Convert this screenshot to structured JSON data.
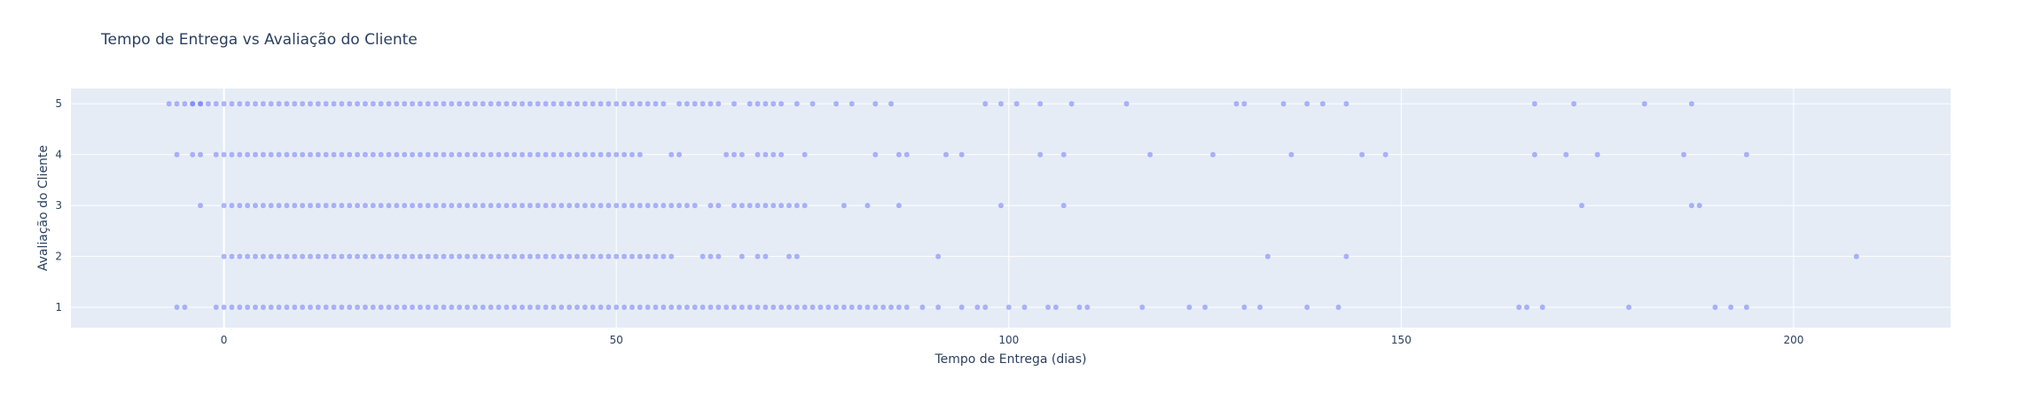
{
  "chart_data": {
    "type": "scatter",
    "title": "Tempo de Entrega vs Avaliação do Cliente",
    "xlabel": "Tempo de Entrega (dias)",
    "ylabel": "Avaliação do Cliente",
    "xlim": [
      -19.5,
      220
    ],
    "ylim": [
      0.6,
      5.3
    ],
    "xticks": [
      0,
      50,
      100,
      150,
      200
    ],
    "yticks": [
      1,
      2,
      3,
      4,
      5
    ],
    "grid": true,
    "legend": "none",
    "colors": {
      "marker": "#636efa",
      "plot_bg": "#e5ecf6",
      "grid": "#ffffff",
      "text": "#2a3f5f",
      "paper_bg": "#ffffff"
    },
    "marker_opacity": 0.5,
    "series": [
      {
        "rating": 5,
        "x_dense": [
          -5,
          55
        ],
        "x_sparse": [
          -7,
          -6,
          -4,
          -3,
          56,
          58,
          59,
          60,
          61,
          62,
          63,
          65,
          67,
          68,
          69,
          70,
          71,
          73,
          75,
          78,
          80,
          83,
          85,
          97,
          99,
          101,
          104,
          108,
          115,
          129,
          130,
          135,
          138,
          140,
          143,
          167,
          172,
          181,
          187
        ]
      },
      {
        "rating": 4,
        "x_dense": [
          -1,
          50
        ],
        "x_sparse": [
          -6,
          -4,
          -3,
          51,
          52,
          53,
          57,
          58,
          64,
          65,
          66,
          68,
          69,
          70,
          71,
          74,
          83,
          86,
          87,
          92,
          94,
          104,
          107,
          118,
          126,
          136,
          145,
          148,
          167,
          171,
          175,
          186,
          194
        ]
      },
      {
        "rating": 3,
        "x_dense": [
          0,
          55
        ],
        "x_sparse": [
          -3,
          56,
          57,
          58,
          59,
          60,
          62,
          63,
          65,
          66,
          67,
          68,
          69,
          70,
          71,
          72,
          73,
          74,
          79,
          82,
          86,
          99,
          107,
          173,
          187,
          188
        ]
      },
      {
        "rating": 2,
        "x_dense": [
          0,
          50
        ],
        "x_sparse": [
          51,
          52,
          53,
          54,
          55,
          56,
          57,
          61,
          62,
          63,
          66,
          68,
          69,
          72,
          73,
          91,
          133,
          143,
          208
        ]
      },
      {
        "rating": 1,
        "x_dense": [
          -1,
          85
        ],
        "x_sparse": [
          -6,
          -5,
          86,
          87,
          89,
          91,
          94,
          96,
          97,
          100,
          102,
          105,
          106,
          109,
          110,
          117,
          123,
          125,
          130,
          132,
          138,
          142,
          165,
          166,
          168,
          179,
          190,
          192,
          194
        ]
      }
    ]
  }
}
